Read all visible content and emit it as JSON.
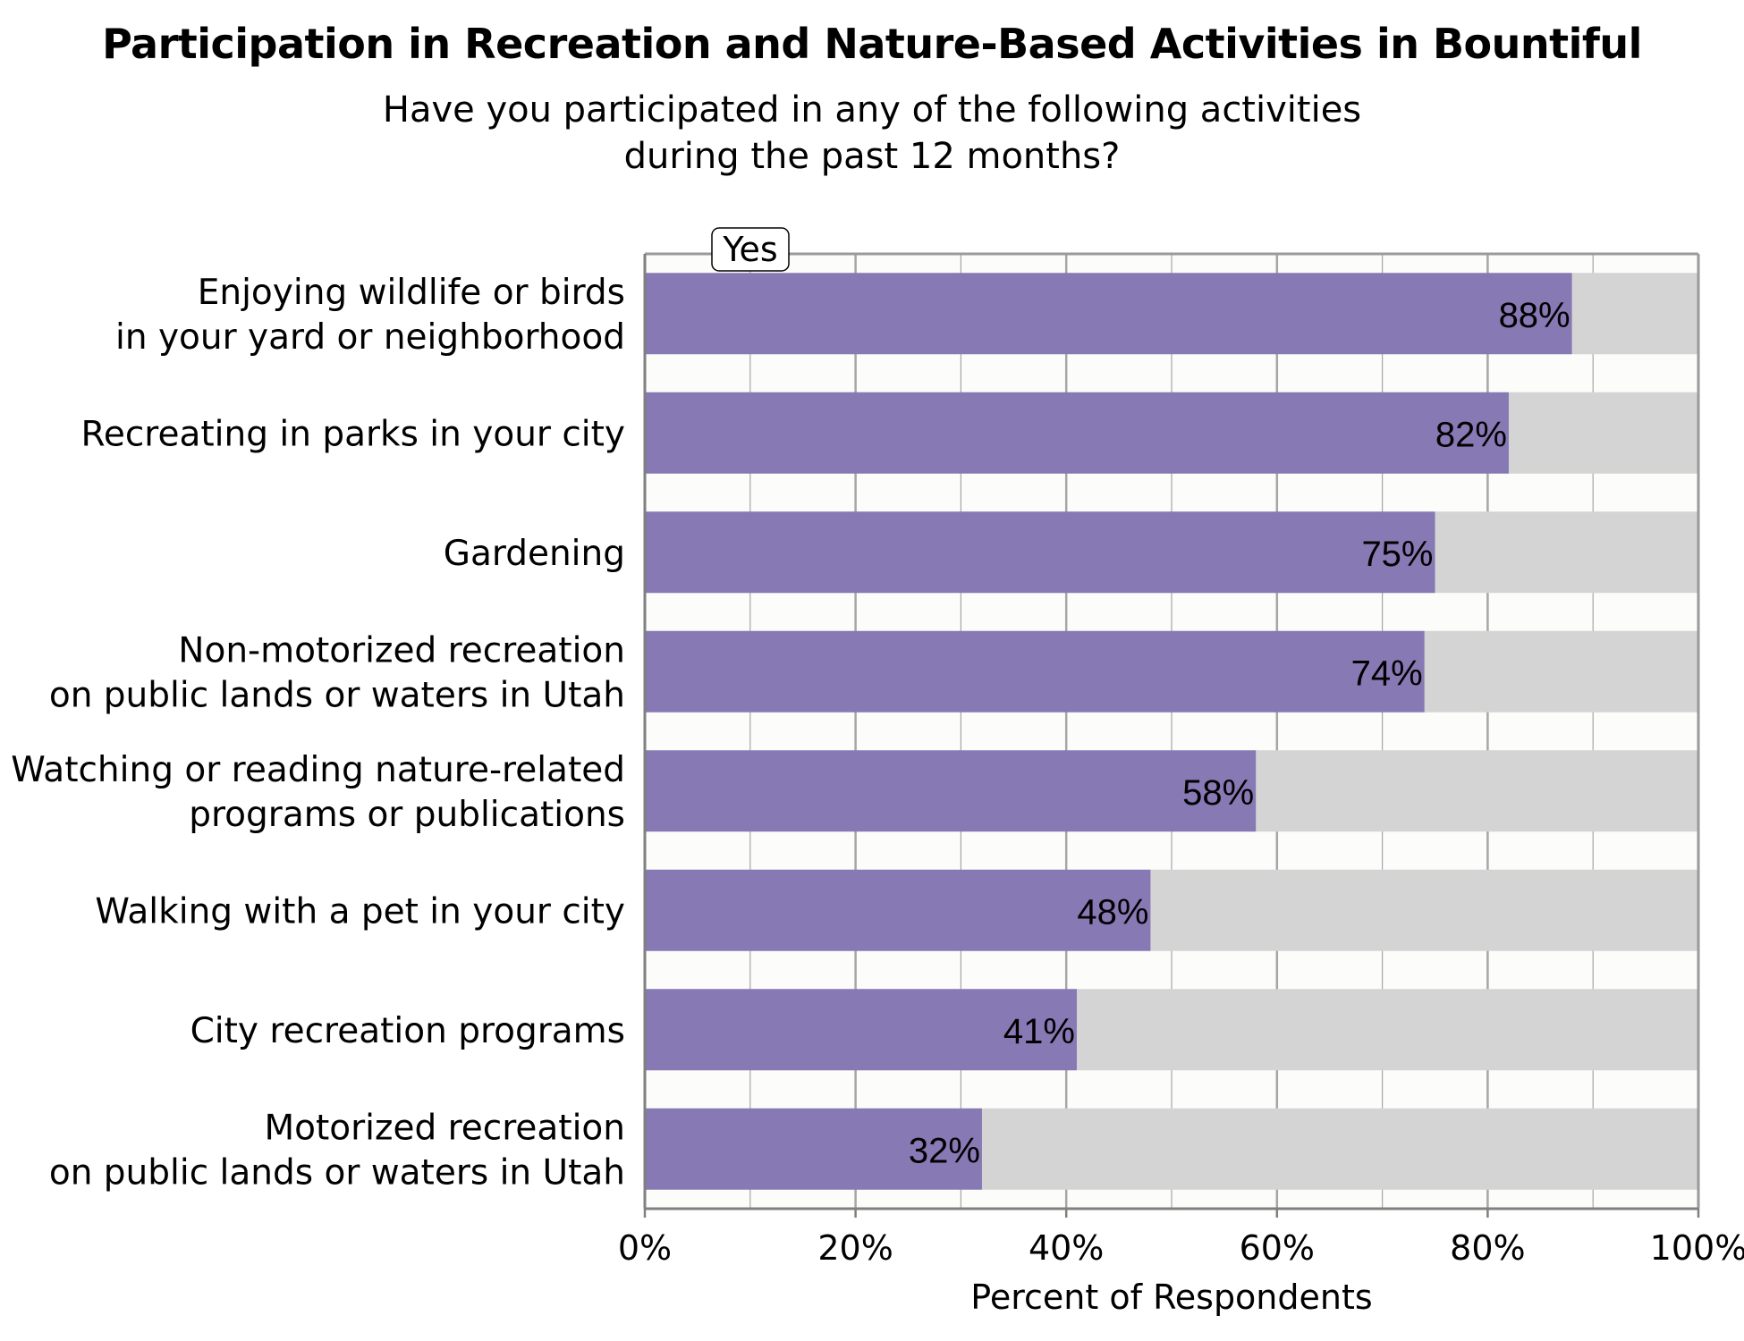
{
  "title": "Participation in Recreation and Nature-Based Activities in Bountiful",
  "subtitle_lines": [
    "Have you participated in any of the following activities",
    "during the past 12 months?"
  ],
  "colors": {
    "yes_bar": "#8679b4",
    "remainder_bar": "#d4d4d4",
    "plot_background": "#fcfcfa",
    "gridline": "#a6a6a6"
  },
  "chart_data": {
    "type": "bar",
    "orientation": "horizontal",
    "stacked": true,
    "categories": [
      [
        "Enjoying wildlife or birds",
        "in your yard or neighborhood"
      ],
      [
        "Recreating in parks in your city"
      ],
      [
        "Gardening"
      ],
      [
        "Non-motorized recreation",
        "on public lands or waters in Utah"
      ],
      [
        "Watching or reading nature-related",
        "programs or publications"
      ],
      [
        "Walking with a pet in your city"
      ],
      [
        "City recreation programs"
      ],
      [
        "Motorized recreation",
        "on public lands or waters in Utah"
      ]
    ],
    "series": [
      {
        "name": "Yes",
        "values": [
          88,
          82,
          75,
          74,
          58,
          48,
          41,
          32
        ]
      }
    ],
    "value_labels": [
      "88%",
      "82%",
      "75%",
      "74%",
      "58%",
      "48%",
      "41%",
      "32%"
    ],
    "xlabel": "Percent of Respondents",
    "xlim": [
      0,
      100
    ],
    "xticks": [
      "0%",
      "20%",
      "40%",
      "60%",
      "80%",
      "100%"
    ],
    "grid": true,
    "legend_position": "top-left"
  }
}
